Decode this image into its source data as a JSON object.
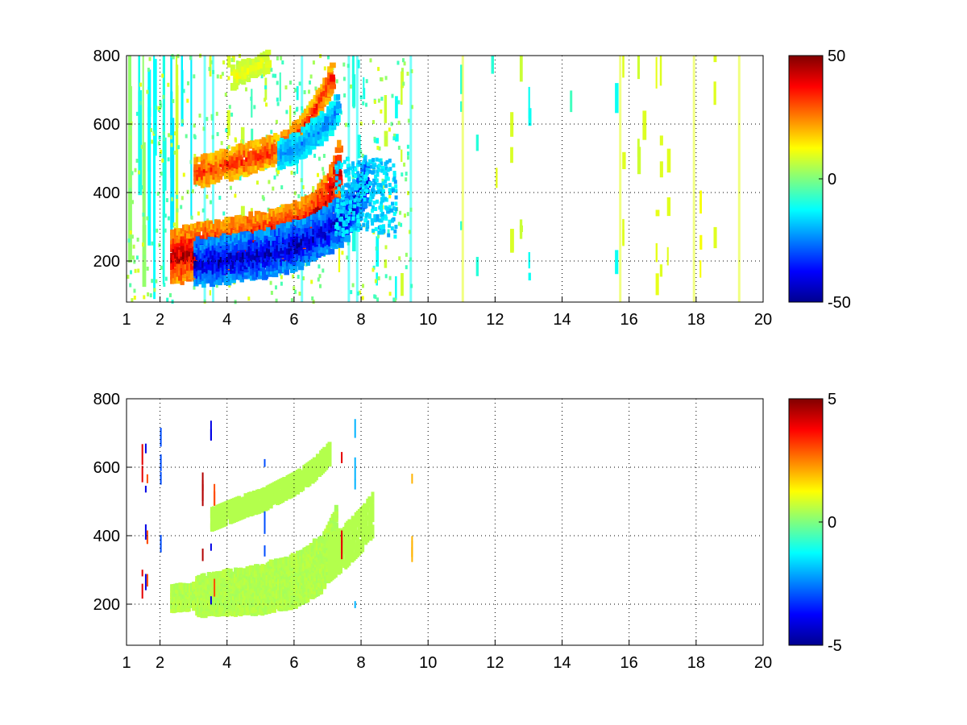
{
  "chart_data": [
    {
      "type": "heatmap",
      "title": "",
      "xlabel": "",
      "ylabel": "",
      "xlim": [
        1,
        20
      ],
      "ylim": [
        80,
        800
      ],
      "x_ticks": [
        "1",
        "2",
        "4",
        "6",
        "8",
        "10",
        "12",
        "14",
        "16",
        "18",
        "20"
      ],
      "x_tick_values": [
        1,
        2,
        4,
        6,
        8,
        10,
        12,
        14,
        16,
        18,
        20
      ],
      "y_ticks": [
        "200",
        "400",
        "600",
        "800"
      ],
      "y_tick_values": [
        200,
        400,
        600,
        800
      ],
      "grid": true,
      "colormap": "jet",
      "colorbar": {
        "min": -50,
        "max": 50,
        "ticks": [
          "50",
          "0",
          "-50"
        ],
        "tick_values": [
          50,
          0,
          -50
        ]
      },
      "features": [
        {
          "name": "lower-ridge-positive",
          "x": [
            2.3,
            3.0,
            4.0,
            5.0,
            6.0,
            6.6,
            7.0,
            7.3
          ],
          "y": [
            215,
            225,
            240,
            260,
            290,
            330,
            390,
            470
          ],
          "value": 45
        },
        {
          "name": "lower-ridge-negative",
          "x": [
            3.0,
            4.0,
            5.0,
            6.0,
            6.8,
            7.4,
            7.8,
            8.1
          ],
          "y": [
            195,
            205,
            220,
            245,
            280,
            320,
            370,
            430
          ],
          "value": -45
        },
        {
          "name": "upper-ridge-positive",
          "x": [
            3.0,
            3.5,
            4.0,
            4.5,
            5.0,
            5.5,
            5.9,
            6.3,
            6.7,
            7.1
          ],
          "y": [
            455,
            470,
            485,
            495,
            510,
            530,
            555,
            600,
            660,
            740
          ],
          "value": 35
        },
        {
          "name": "upper-ridge-negative",
          "x": [
            5.5,
            6.0,
            6.4,
            6.8,
            7.1,
            7.3
          ],
          "y": [
            510,
            530,
            560,
            590,
            620,
            660
          ],
          "value": -25
        },
        {
          "name": "top-yellow-blob",
          "x": [
            4.1,
            4.6,
            5.0,
            5.2
          ],
          "y": [
            735,
            760,
            775,
            790
          ],
          "value": 12
        }
      ]
    },
    {
      "type": "heatmap",
      "title": "",
      "xlabel": "",
      "ylabel": "",
      "xlim": [
        1,
        20
      ],
      "ylim": [
        80,
        800
      ],
      "x_ticks": [
        "1",
        "2",
        "4",
        "6",
        "8",
        "10",
        "12",
        "14",
        "16",
        "18",
        "20"
      ],
      "x_tick_values": [
        1,
        2,
        4,
        6,
        8,
        10,
        12,
        14,
        16,
        18,
        20
      ],
      "y_ticks": [
        "200",
        "400",
        "600",
        "800"
      ],
      "y_tick_values": [
        200,
        400,
        600,
        800
      ],
      "grid": true,
      "colormap": "jet",
      "colorbar": {
        "min": -5,
        "max": 5,
        "ticks": [
          "5",
          "0",
          "-5"
        ],
        "tick_values": [
          5,
          0,
          -5
        ]
      },
      "features": [
        {
          "name": "lower-band",
          "x": [
            2.3,
            3.0,
            4.0,
            5.0,
            6.0,
            6.8,
            7.2
          ],
          "y": [
            220,
            225,
            235,
            245,
            270,
            320,
            400
          ],
          "value": 0.5
        },
        {
          "name": "upper-band",
          "x": [
            3.5,
            4.0,
            4.5,
            5.0,
            5.5,
            6.0,
            6.5,
            7.0
          ],
          "y": [
            450,
            470,
            490,
            505,
            530,
            555,
            590,
            640
          ],
          "value": 0.5
        },
        {
          "name": "right-lobe",
          "x": [
            7.0,
            7.5,
            8.0,
            8.3
          ],
          "y": [
            330,
            370,
            420,
            460
          ],
          "value": 0.5
        }
      ]
    }
  ]
}
